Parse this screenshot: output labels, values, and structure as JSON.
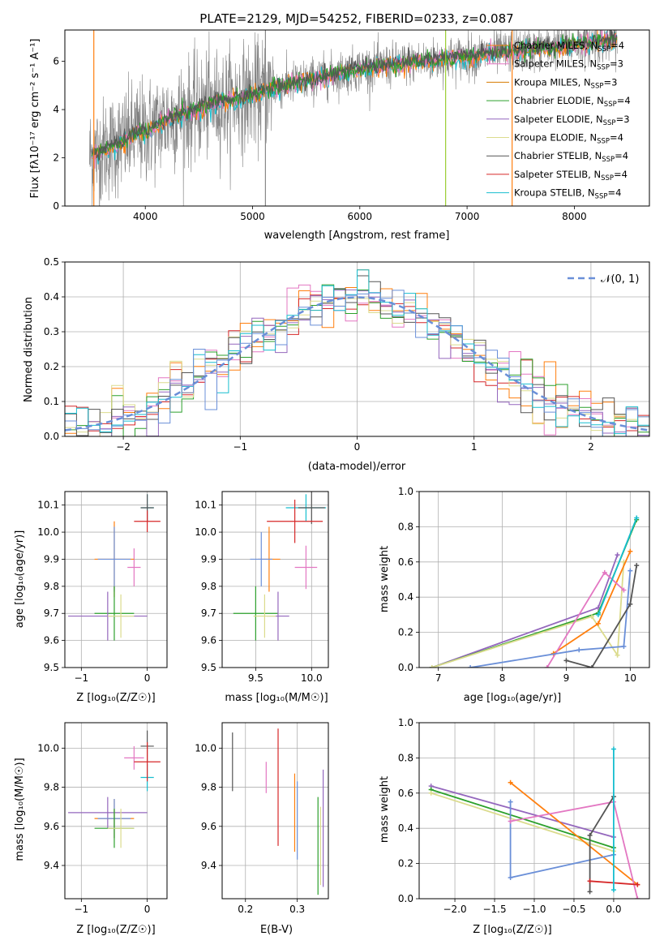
{
  "colors": {
    "grid": "#b0b0b0",
    "gray_data": "#808080",
    "miles_chabrier": "#ff7f0e",
    "series_palette": [
      "#ff7f0e",
      "#e377c2",
      "#ff7f0e",
      "#2ca02c",
      "#9467bd",
      "#dbdb8d",
      "#555555",
      "#d62728",
      "#17becf"
    ]
  },
  "chart_data": [
    {
      "id": "spectrum",
      "type": "line",
      "title": "PLATE=2129, MJD=54252, FIBERID=0233, z=0.087",
      "xlabel": "wavelength [Angstrom, rest frame]",
      "ylabel": "Flux [fλ10⁻¹⁷ erg cm⁻² s⁻¹ A⁻¹]",
      "xlim": [
        3250,
        8700
      ],
      "ylim": [
        0,
        7.3
      ],
      "xticks": [
        "4000",
        "5000",
        "6000",
        "7000",
        "8000"
      ],
      "yticks": [
        "0",
        "2",
        "4",
        "6"
      ],
      "legend_position": "right",
      "legend": [
        {
          "label": "Chabrier MILES, N",
          "sub": "SSP",
          "tail": "=4",
          "color": "#ff7f0e"
        },
        {
          "label": "Salpeter MILES, N",
          "sub": "SSP",
          "tail": "=3",
          "color": "#e377c2"
        },
        {
          "label": "Kroupa MILES, N",
          "sub": "SSP",
          "tail": "=3",
          "color": "#d67b00"
        },
        {
          "label": "Chabrier ELODIE, N",
          "sub": "SSP",
          "tail": "=4",
          "color": "#2ca02c"
        },
        {
          "label": "Salpeter ELODIE, N",
          "sub": "SSP",
          "tail": "=3",
          "color": "#9467bd"
        },
        {
          "label": "Kroupa ELODIE, N",
          "sub": "SSP",
          "tail": "=4",
          "color": "#dbdb8d"
        },
        {
          "label": "Chabrier STELIB, N",
          "sub": "SSP",
          "tail": "=4",
          "color": "#555555"
        },
        {
          "label": "Salpeter STELIB, N",
          "sub": "SSP",
          "tail": "=4",
          "color": "#d62728"
        },
        {
          "label": "Kroupa STELIB, N",
          "sub": "SSP",
          "tail": "=4",
          "color": "#17becf"
        }
      ],
      "model_continuum": {
        "x": [
          3500,
          3600,
          3700,
          3800,
          3900,
          4000,
          4100,
          4200,
          4400,
          4600,
          4800,
          5000,
          5200,
          5400,
          5600,
          5800,
          6000,
          6200,
          6400,
          6600,
          6800,
          7000,
          7200,
          7400,
          7600,
          7800,
          8000,
          8200,
          8400
        ],
        "y": [
          2.1,
          2.3,
          2.5,
          2.7,
          3.0,
          3.1,
          3.3,
          3.6,
          3.9,
          4.2,
          4.4,
          4.6,
          4.9,
          5.1,
          5.3,
          5.5,
          5.7,
          5.8,
          5.9,
          6.0,
          6.1,
          6.2,
          6.3,
          6.4,
          6.5,
          6.6,
          6.7,
          6.8,
          6.9
        ]
      }
    },
    {
      "id": "residual_histogram",
      "type": "line",
      "xlabel": "(data-model)/error",
      "ylabel": "Normed distribution",
      "xlim": [
        -2.5,
        2.5
      ],
      "ylim": [
        0,
        0.5
      ],
      "xticks": [
        "−2",
        "−1",
        "0",
        "1",
        "2"
      ],
      "yticks": [
        "0.0",
        "0.1",
        "0.2",
        "0.3",
        "0.4",
        "0.5"
      ],
      "legend": "𝒩(0, 1)",
      "legend_position": "top-right",
      "bin_width": 0.1
    },
    {
      "id": "age_vs_Z",
      "type": "scatter",
      "xlabel": "Z [log₁₀(Z/Z☉)]",
      "ylabel": "age  [log₁₀(age/yr)]",
      "xlim": [
        -1.25,
        0.3
      ],
      "ylim": [
        9.5,
        10.15
      ],
      "xticks": [
        "−1",
        "0"
      ],
      "yticks": [
        "9.5",
        "9.6",
        "9.7",
        "9.8",
        "9.9",
        "10.0",
        "10.1"
      ]
    },
    {
      "id": "age_vs_mass",
      "type": "scatter",
      "xlabel": "mass [log₁₀(M/M☉)]",
      "xlim": [
        9.2,
        10.15
      ],
      "ylim": [
        9.5,
        10.15
      ],
      "xticks": [
        "9.5",
        "10.0"
      ],
      "yticks": [
        "9.5",
        "9.6",
        "9.7",
        "9.8",
        "9.9",
        "10.0",
        "10.1"
      ]
    },
    {
      "id": "weight_vs_age",
      "type": "line",
      "xlabel": "age  [log₁₀(age/yr)]",
      "ylabel": "mass weight",
      "xlim": [
        6.7,
        10.3
      ],
      "ylim": [
        0,
        1
      ],
      "xticks": [
        "7",
        "8",
        "9",
        "10"
      ],
      "yticks": [
        "0.0",
        "0.2",
        "0.4",
        "0.6",
        "0.8",
        "1.0"
      ]
    },
    {
      "id": "mass_vs_Z",
      "type": "scatter",
      "xlabel": "Z [log₁₀(Z/Z☉)]",
      "ylabel": "mass [log₁₀(M/M☉)]",
      "xlim": [
        -1.25,
        0.3
      ],
      "ylim": [
        9.23,
        10.13
      ],
      "xticks": [
        "−1",
        "0"
      ],
      "yticks": [
        "9.4",
        "9.6",
        "9.8",
        "10.0"
      ]
    },
    {
      "id": "mass_vs_ebv",
      "type": "scatter",
      "xlabel": "E(B-V)",
      "xlim": [
        0.155,
        0.36
      ],
      "ylim": [
        9.23,
        10.13
      ],
      "xticks": [
        "0.2",
        "0.3"
      ],
      "yticks": [
        "9.4",
        "9.6",
        "9.8",
        "10.0"
      ]
    },
    {
      "id": "weight_vs_Z",
      "type": "line",
      "xlabel": "Z [log₁₀(Z/Z☉)]",
      "ylabel": "mass weight",
      "xlim": [
        -2.45,
        0.45
      ],
      "ylim": [
        0,
        1
      ],
      "xticks": [
        "−2.0",
        "−1.5",
        "−1.0",
        "−0.5",
        "0.0"
      ],
      "yticks": [
        "0.0",
        "0.2",
        "0.4",
        "0.6",
        "0.8",
        "1.0"
      ]
    }
  ]
}
